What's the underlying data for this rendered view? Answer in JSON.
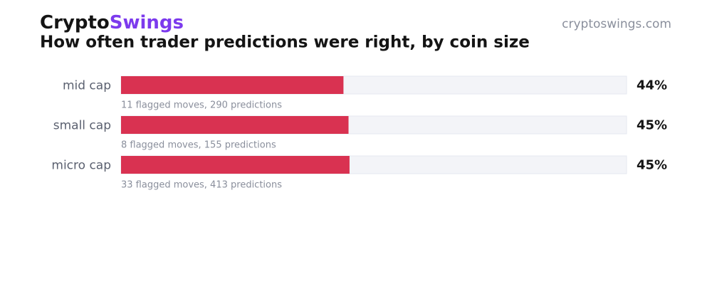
{
  "chart_data": {
    "type": "bar",
    "brand": [
      "Crypto",
      "Swings"
    ],
    "brand_colors": [
      "#141414",
      "#7c3aed"
    ],
    "title": "How often trader predictions were right, by coin size",
    "source": "cryptoswings.com",
    "categories": [
      "mid cap",
      "small cap",
      "micro cap"
    ],
    "values": [
      44,
      45,
      45.2
    ],
    "value_labels": [
      "44%",
      "45%",
      "45%"
    ],
    "notes": [
      "11 flagged moves, 290 predictions",
      "8 flagged moves, 155 predictions",
      "33 flagged moves, 413 predictions"
    ],
    "color": "#d93251",
    "xlim": [
      0,
      100
    ]
  }
}
